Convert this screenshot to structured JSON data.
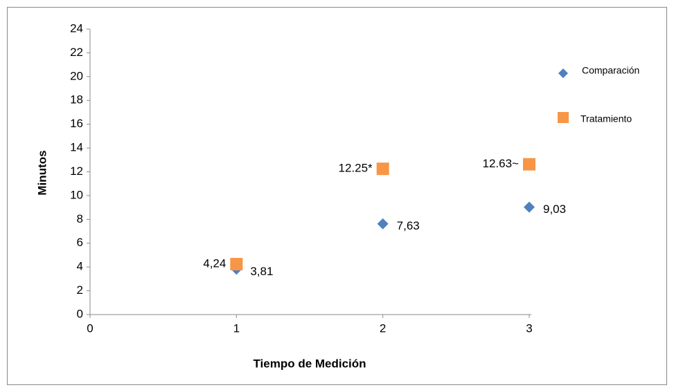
{
  "chart_data": {
    "type": "scatter",
    "x_label": "Tiempo de Medición",
    "y_label": "Minutos",
    "x": [
      1,
      2,
      3
    ],
    "series": [
      {
        "name": "Comparación",
        "color": "#4f81bd",
        "marker": "diamond",
        "values": [
          3.81,
          7.63,
          9.03
        ],
        "value_labels": [
          "3,81",
          "7,63",
          "9,03"
        ]
      },
      {
        "name": "Tratamiento",
        "color": "#f79646",
        "marker": "square",
        "values": [
          4.24,
          12.25,
          12.63
        ],
        "value_labels": [
          "4,24",
          "12.25*",
          "12.63~"
        ]
      }
    ],
    "xlim": [
      0,
      3
    ],
    "xticks": [
      0,
      1,
      2,
      3
    ],
    "ylim": [
      0,
      24
    ],
    "yticks": [
      0,
      2,
      4,
      6,
      8,
      10,
      12,
      14,
      16,
      18,
      20,
      22,
      24
    ],
    "grid": false,
    "legend": "right"
  }
}
